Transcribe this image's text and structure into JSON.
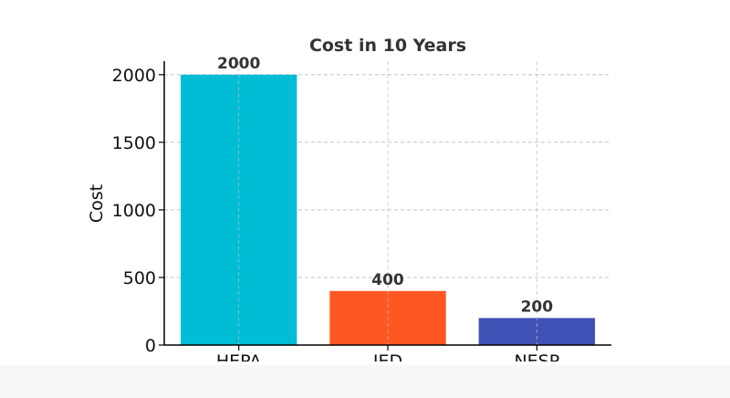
{
  "chart_data": {
    "type": "bar",
    "title": "Cost in 10 Years",
    "xlabel": "",
    "ylabel": "Cost",
    "categories": [
      "HEPA",
      "IED",
      "NESP"
    ],
    "values": [
      2000,
      400,
      200
    ],
    "data_labels": [
      "2000",
      "400",
      "200"
    ],
    "colors": [
      "#00bcd4",
      "#ff5722",
      "#3f51b5"
    ],
    "ylim": [
      0,
      2100
    ],
    "yticks": [
      0,
      500,
      1000,
      1500,
      2000
    ],
    "ytick_labels": [
      "0",
      "500",
      "1000",
      "1500",
      "2000"
    ],
    "grid": true,
    "legend": "none"
  }
}
